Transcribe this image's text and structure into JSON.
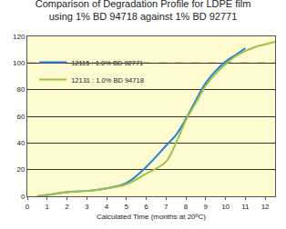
{
  "chart_data": {
    "type": "line",
    "title": "Comparison of Degradation Profile for LDPE film\nusing 1% BD 94718 against 1% BD 92771",
    "x_label": "Calculated Time (months at 20ºC)",
    "xlim": [
      0,
      12.5
    ],
    "xticks": [
      0,
      1,
      2,
      3,
      4,
      5,
      6,
      7,
      8,
      9,
      10,
      11,
      12
    ],
    "ylim": [
      0,
      120
    ],
    "yticks": [
      0,
      20,
      40,
      60,
      80,
      100,
      120
    ],
    "grid": true,
    "legend": "upper left",
    "reference_line": {
      "y": 100,
      "color": "#e03030",
      "line_style": "dash"
    },
    "series": [
      {
        "name": "12115 : 1.0% BD 92771",
        "color": "#2a7fd4",
        "x": [
          0.5,
          1,
          2,
          3,
          4,
          5,
          6,
          7,
          7.5,
          8,
          8.5,
          9,
          9.5,
          10,
          10.5,
          11
        ],
        "values": [
          0,
          1,
          3,
          4,
          6,
          10,
          22,
          38,
          46,
          58,
          72,
          85,
          94,
          101,
          106,
          111
        ]
      },
      {
        "name": "12131 : 1.0% BD 94718",
        "color": "#9cc24a",
        "x": [
          0.5,
          1,
          2,
          3,
          4,
          5,
          6,
          7,
          7.5,
          8,
          8.5,
          9,
          9.5,
          10,
          10.5,
          11,
          11.5,
          12,
          12.5
        ],
        "values": [
          0,
          1,
          3,
          4,
          6,
          9,
          17,
          26,
          40,
          57,
          70,
          83,
          92,
          99,
          105,
          109,
          112,
          114,
          116
        ]
      }
    ]
  }
}
